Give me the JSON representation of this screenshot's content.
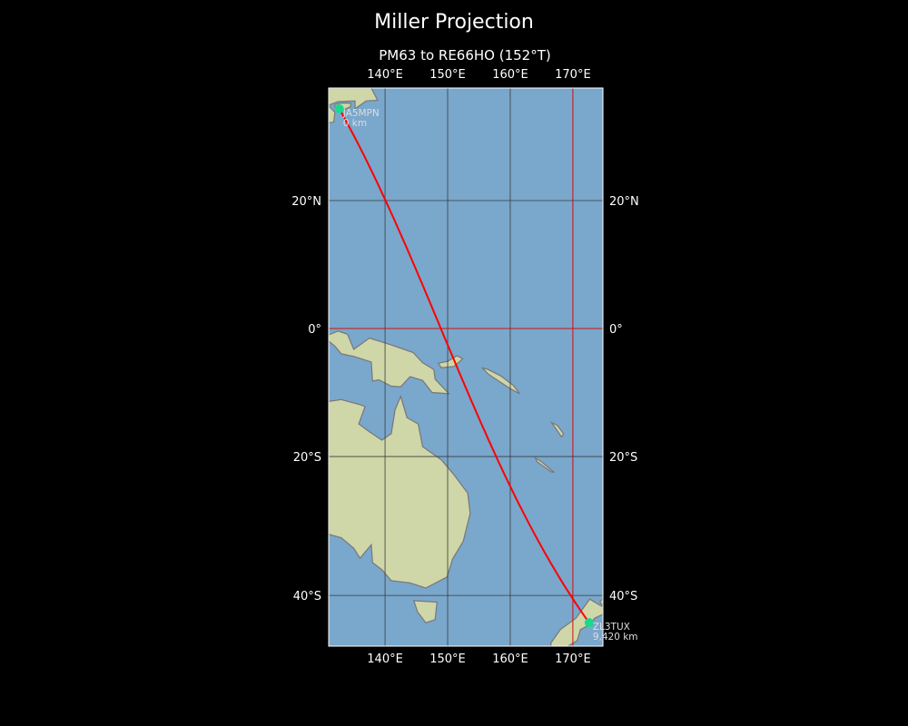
{
  "title": "Miller Projection",
  "subtitle": "PM63 to RE66HO (152°T)",
  "map": {
    "projection": "miller",
    "extent": {
      "lon": [
        131.0,
        174.8
      ],
      "lat": [
        -46.6,
        36.4
      ]
    },
    "lon_ticks": [
      {
        "value": 140,
        "label": "140°E"
      },
      {
        "value": 150,
        "label": "150°E"
      },
      {
        "value": 160,
        "label": "160°E"
      },
      {
        "value": 170,
        "label": "170°E"
      }
    ],
    "lat_ticks": [
      {
        "value": 20,
        "label": "20°N"
      },
      {
        "value": 0,
        "label": "0°"
      },
      {
        "value": -20,
        "label": "20°S"
      },
      {
        "value": -40,
        "label": "40°S"
      }
    ],
    "highlight_lines": {
      "lon": 170,
      "lat": 0,
      "color": "#d01010"
    },
    "colors": {
      "ocean": "#7aa7cc",
      "land": "#cfd6a8",
      "coast": "#777777",
      "grid": "#3a3a3a",
      "path": "#ff0000",
      "marker": "#19d98c"
    },
    "points": [
      {
        "name": "JA5MPN",
        "distance": "0 km",
        "lat": 33.5,
        "lon": 132.7
      },
      {
        "name": "ZL3TUX",
        "distance": "9,420 km",
        "lat": -43.6,
        "lon": 172.6
      }
    ]
  }
}
